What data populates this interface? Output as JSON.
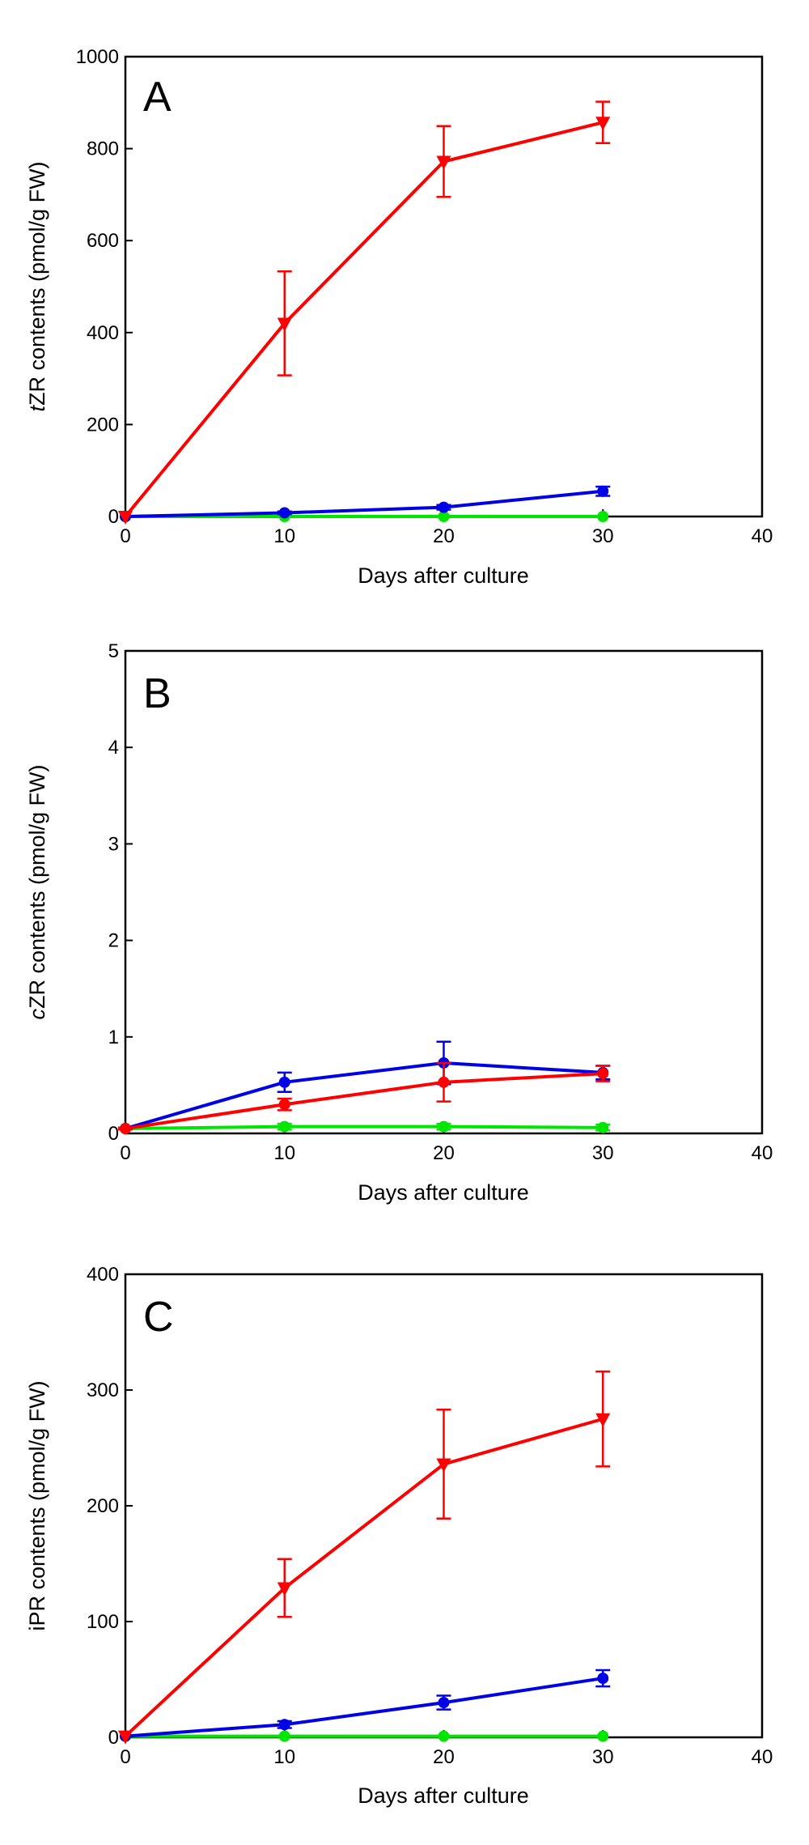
{
  "figure": {
    "description_free": true
  },
  "colors": {
    "red": "#ff0000",
    "blue": "#0000e6",
    "green": "#00e600",
    "axis": "#000000"
  },
  "chart_data": [
    {
      "type": "line",
      "panel": "A",
      "ylabel": {
        "italic": "t",
        "rest": "ZR contents (pmol/g FW)"
      },
      "xlabel": "Days after culture",
      "xlim": [
        0,
        40
      ],
      "ylim": [
        0,
        1000
      ],
      "xticks": [
        0,
        10,
        20,
        30,
        40
      ],
      "yticks": [
        0,
        200,
        400,
        600,
        800,
        1000
      ],
      "x": [
        0,
        10,
        20,
        30
      ],
      "series": [
        {
          "name": "green",
          "color": "#00e600",
          "marker": "circle",
          "values": [
            0,
            0,
            0,
            0
          ],
          "errors": [
            0,
            0,
            0,
            0
          ]
        },
        {
          "name": "blue",
          "color": "#0000e6",
          "marker": "circle",
          "values": [
            0,
            8,
            20,
            55
          ],
          "errors": [
            0,
            3,
            5,
            10
          ]
        },
        {
          "name": "red",
          "color": "#ff0000",
          "marker": "triangle-down",
          "values": [
            0,
            420,
            772,
            857
          ],
          "errors": [
            0,
            113,
            77,
            45
          ]
        }
      ]
    },
    {
      "type": "line",
      "panel": "B",
      "ylabel": {
        "italic": "c",
        "rest": "ZR contents (pmol/g FW)"
      },
      "xlabel": "Days after culture",
      "xlim": [
        0,
        40
      ],
      "ylim": [
        0,
        5
      ],
      "xticks": [
        0,
        10,
        20,
        30,
        40
      ],
      "yticks": [
        0,
        1,
        2,
        3,
        4,
        5
      ],
      "x": [
        0,
        10,
        20,
        30
      ],
      "series": [
        {
          "name": "green",
          "color": "#00e600",
          "marker": "circle",
          "values": [
            0.05,
            0.07,
            0.07,
            0.06
          ],
          "errors": [
            0.01,
            0.03,
            0.03,
            0.03
          ]
        },
        {
          "name": "blue",
          "color": "#0000e6",
          "marker": "circle",
          "values": [
            0.05,
            0.53,
            0.73,
            0.63
          ],
          "errors": [
            0.01,
            0.1,
            0.22,
            0.07
          ]
        },
        {
          "name": "red",
          "color": "#ff0000",
          "marker": "circle",
          "values": [
            0.05,
            0.3,
            0.53,
            0.62
          ],
          "errors": [
            0.01,
            0.06,
            0.2,
            0.08
          ]
        }
      ]
    },
    {
      "type": "line",
      "panel": "C",
      "ylabel": {
        "italic": "",
        "rest": "iPR contents (pmol/g FW)"
      },
      "xlabel": "Days after culture",
      "xlim": [
        0,
        40
      ],
      "ylim": [
        0,
        400
      ],
      "xticks": [
        0,
        10,
        20,
        30,
        40
      ],
      "yticks": [
        0,
        100,
        200,
        300,
        400
      ],
      "x": [
        0,
        10,
        20,
        30
      ],
      "series": [
        {
          "name": "green",
          "color": "#00e600",
          "marker": "circle",
          "values": [
            1,
            1,
            1,
            1
          ],
          "errors": [
            0,
            0,
            0,
            0
          ]
        },
        {
          "name": "blue",
          "color": "#0000e6",
          "marker": "circle",
          "values": [
            1,
            11,
            30,
            51
          ],
          "errors": [
            0,
            3,
            6,
            7
          ]
        },
        {
          "name": "red",
          "color": "#ff0000",
          "marker": "triangle-down",
          "values": [
            1,
            129,
            236,
            275
          ],
          "errors": [
            0,
            25,
            47,
            41
          ]
        }
      ]
    }
  ]
}
